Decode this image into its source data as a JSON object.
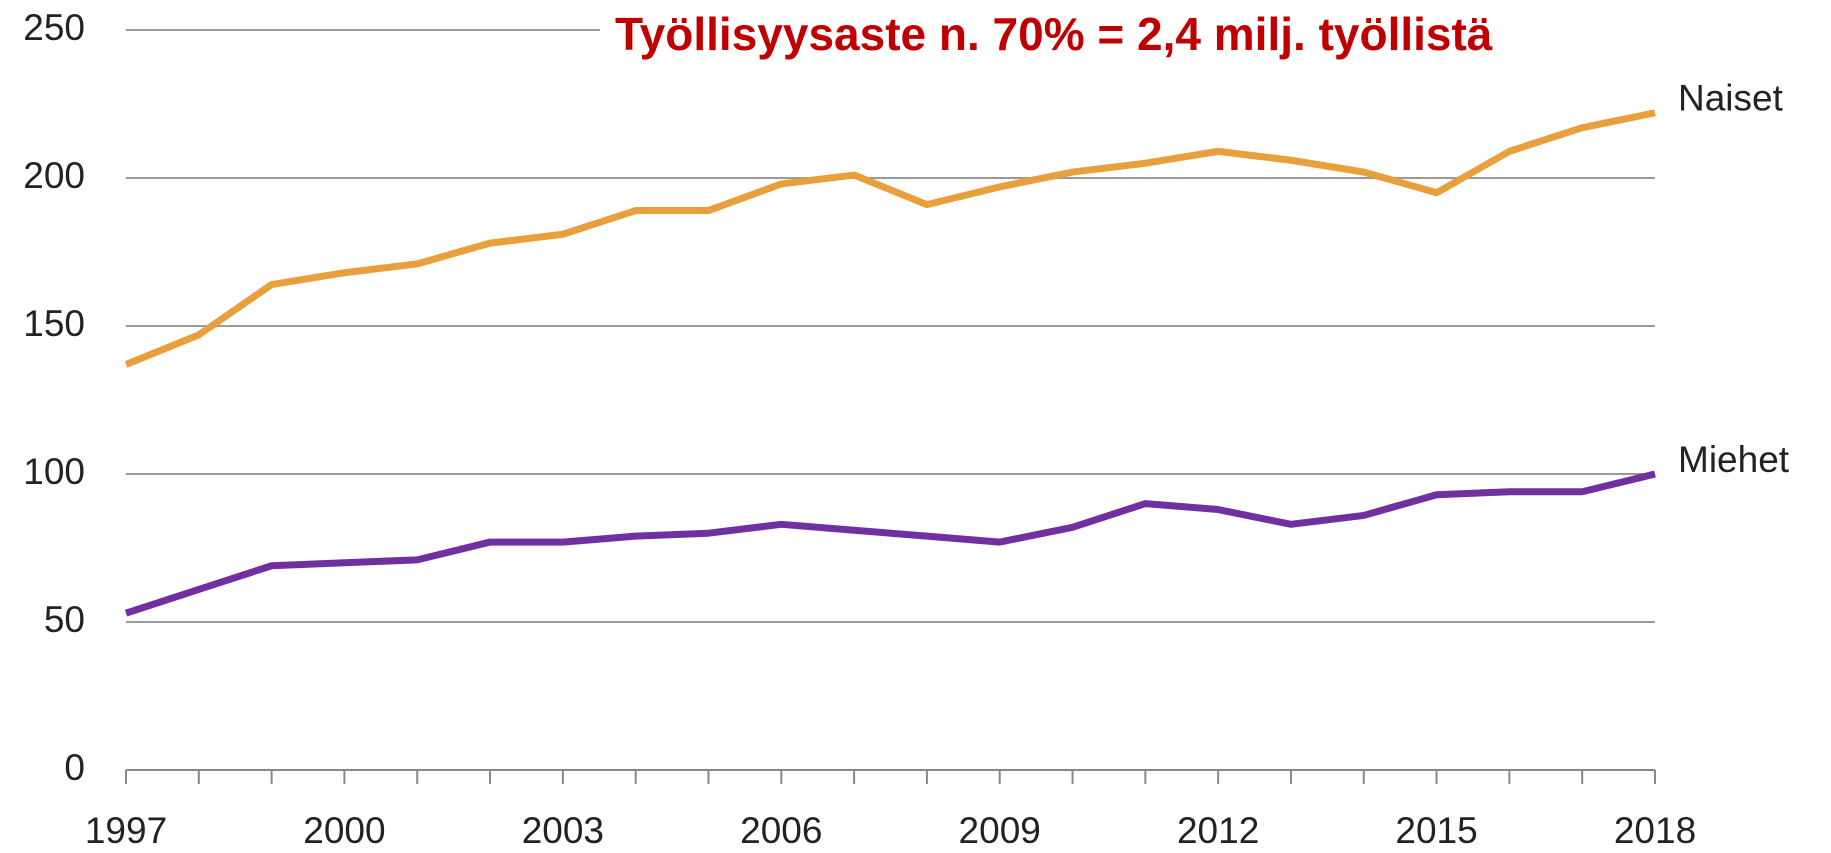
{
  "chart_data": {
    "type": "line",
    "title": "Työllisyysaste n. 70% = 2,4 milj. työllistä",
    "x": [
      1997,
      1998,
      1999,
      2000,
      2001,
      2002,
      2003,
      2004,
      2005,
      2006,
      2007,
      2008,
      2009,
      2010,
      2011,
      2012,
      2013,
      2014,
      2015,
      2016,
      2017,
      2018
    ],
    "series": [
      {
        "name": "Naiset",
        "color": "#e8a03c",
        "values": [
          137,
          147,
          164,
          168,
          171,
          178,
          181,
          189,
          189,
          198,
          201,
          191,
          197,
          202,
          205,
          209,
          206,
          202,
          195,
          209,
          217,
          222
        ]
      },
      {
        "name": "Miehet",
        "color": "#7030a0",
        "values": [
          53,
          61,
          69,
          70,
          71,
          77,
          77,
          79,
          80,
          83,
          81,
          79,
          77,
          82,
          90,
          88,
          83,
          86,
          93,
          94,
          94,
          100
        ]
      }
    ],
    "xlim": [
      1997,
      2018
    ],
    "xticks": [
      1997,
      2000,
      2003,
      2006,
      2009,
      2012,
      2015,
      2018
    ],
    "ylim": [
      0,
      250
    ],
    "yticks": [
      0,
      50,
      100,
      150,
      200,
      250
    ],
    "grid": true
  }
}
